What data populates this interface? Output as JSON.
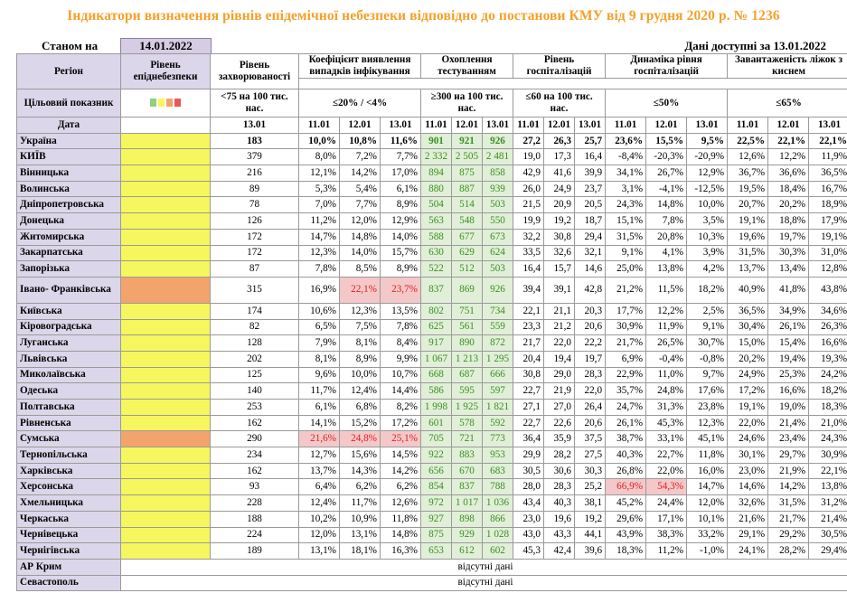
{
  "title": "Індикатори визначення рівнів епідемічної небезпеки відповідно до постанови КМУ від 9 грудня 2020 р. № 1236",
  "status_label": "Станом на",
  "status_date": "14.01.2022",
  "available_text": "Дані доступні за 13.01.2022",
  "headers": {
    "region": "Регіон",
    "target": "Цільовий показник",
    "date_label": "Дата",
    "level": "Рівень епіднебезпеки",
    "incidence": "Рівень захворюваності",
    "incidence_target": "<75 на 100 тис. нас.",
    "incidence_date": "13.01",
    "positivity": "Коефіцієнт виявлення випадків інфікування",
    "positivity_target": "≤20% / <4%",
    "testing": "Охоплення тестуванням",
    "testing_target": "≥300 на 100 тис. нас.",
    "hosp": "Рівень госпіталізацій",
    "hosp_target": "≤60 на 100 тис. нас.",
    "hosp_dyn": "Динаміка рівня госпіталізацій",
    "hosp_dyn_target": "≤50%",
    "oxygen": "Завантаженість ліжок з киснем",
    "oxygen_target": "≤65%",
    "dates": [
      "11.01",
      "12.01",
      "13.01"
    ]
  },
  "swatch_colors": [
    "#8fd17f",
    "#f6f65e",
    "#f2a46c",
    "#e85a5a"
  ],
  "rows": [
    {
      "name": "Україна",
      "level": "yellow",
      "inc": "183",
      "pos": [
        "10,0%",
        "10,8%",
        "11,6%"
      ],
      "test": [
        "901",
        "921",
        "926"
      ],
      "hosp": [
        "27,2",
        "26,3",
        "25,7"
      ],
      "dyn": [
        "23,6%",
        "15,5%",
        "9,5%"
      ],
      "oxy": [
        "22,5%",
        "22,1%",
        "22,1%"
      ],
      "bold": true
    },
    {
      "name": "КИЇВ",
      "level": "yellow",
      "inc": "379",
      "pos": [
        "8,0%",
        "7,2%",
        "7,7%"
      ],
      "test": [
        "2 332",
        "2 505",
        "2 481"
      ],
      "hosp": [
        "19,0",
        "17,3",
        "16,4"
      ],
      "dyn": [
        "-8,4%",
        "-20,3%",
        "-20,9%"
      ],
      "oxy": [
        "12,6%",
        "12,2%",
        "11,9%"
      ]
    },
    {
      "name": "Вінницька",
      "level": "yellow",
      "inc": "216",
      "pos": [
        "12,1%",
        "14,2%",
        "17,0%"
      ],
      "test": [
        "894",
        "875",
        "858"
      ],
      "hosp": [
        "42,9",
        "41,6",
        "39,9"
      ],
      "dyn": [
        "34,1%",
        "26,7%",
        "12,9%"
      ],
      "oxy": [
        "36,7%",
        "36,6%",
        "36,5%"
      ]
    },
    {
      "name": "Волинська",
      "level": "yellow",
      "inc": "89",
      "pos": [
        "5,3%",
        "5,4%",
        "6,1%"
      ],
      "test": [
        "880",
        "887",
        "939"
      ],
      "hosp": [
        "26,0",
        "24,9",
        "23,7"
      ],
      "dyn": [
        "3,1%",
        "-4,1%",
        "-12,5%"
      ],
      "oxy": [
        "19,5%",
        "18,4%",
        "16,7%"
      ]
    },
    {
      "name": "Дніпропетровська",
      "level": "yellow",
      "inc": "78",
      "pos": [
        "7,0%",
        "7,7%",
        "8,9%"
      ],
      "test": [
        "504",
        "514",
        "503"
      ],
      "hosp": [
        "21,5",
        "20,9",
        "20,5"
      ],
      "dyn": [
        "24,3%",
        "14,8%",
        "10,0%"
      ],
      "oxy": [
        "20,7%",
        "20,2%",
        "18,9%"
      ]
    },
    {
      "name": "Донецька",
      "level": "yellow",
      "inc": "126",
      "pos": [
        "11,2%",
        "12,0%",
        "12,9%"
      ],
      "test": [
        "563",
        "548",
        "550"
      ],
      "hosp": [
        "19,9",
        "19,2",
        "18,7"
      ],
      "dyn": [
        "15,1%",
        "7,8%",
        "3,5%"
      ],
      "oxy": [
        "19,1%",
        "18,8%",
        "17,9%"
      ]
    },
    {
      "name": "Житомирська",
      "level": "yellow",
      "inc": "172",
      "pos": [
        "14,7%",
        "14,8%",
        "14,0%"
      ],
      "test": [
        "588",
        "677",
        "673"
      ],
      "hosp": [
        "32,2",
        "30,8",
        "29,4"
      ],
      "dyn": [
        "31,5%",
        "20,8%",
        "10,3%"
      ],
      "oxy": [
        "19,6%",
        "19,7%",
        "19,1%"
      ]
    },
    {
      "name": "Закарпатська",
      "level": "yellow",
      "inc": "172",
      "pos": [
        "12,3%",
        "14,0%",
        "15,7%"
      ],
      "test": [
        "630",
        "629",
        "624"
      ],
      "hosp": [
        "33,5",
        "32,6",
        "32,1"
      ],
      "dyn": [
        "9,1%",
        "4,1%",
        "3,9%"
      ],
      "oxy": [
        "31,5%",
        "30,3%",
        "31,0%"
      ]
    },
    {
      "name": "Запорізька",
      "level": "yellow",
      "inc": "87",
      "pos": [
        "7,8%",
        "8,5%",
        "8,9%"
      ],
      "test": [
        "522",
        "512",
        "503"
      ],
      "hosp": [
        "16,4",
        "15,7",
        "14,6"
      ],
      "dyn": [
        "25,0%",
        "13,8%",
        "4,2%"
      ],
      "oxy": [
        "13,7%",
        "13,4%",
        "12,8%"
      ]
    },
    {
      "name": "Івано- Франківська",
      "level": "orange",
      "inc": "315",
      "pos": [
        "16,9%",
        "22,1%",
        "23,7%"
      ],
      "posRed": [
        false,
        true,
        true
      ],
      "test": [
        "837",
        "869",
        "926"
      ],
      "hosp": [
        "39,4",
        "39,1",
        "42,8"
      ],
      "dyn": [
        "21,2%",
        "11,5%",
        "18,2%"
      ],
      "oxy": [
        "40,9%",
        "41,8%",
        "43,8%"
      ],
      "tall": true
    },
    {
      "name": "Київська",
      "level": "yellow",
      "inc": "174",
      "pos": [
        "10,6%",
        "12,3%",
        "13,5%"
      ],
      "test": [
        "802",
        "751",
        "734"
      ],
      "hosp": [
        "22,1",
        "21,1",
        "20,3"
      ],
      "dyn": [
        "17,7%",
        "12,2%",
        "2,5%"
      ],
      "oxy": [
        "36,5%",
        "34,9%",
        "34,6%"
      ]
    },
    {
      "name": "Кіровоградська",
      "level": "yellow",
      "inc": "82",
      "pos": [
        "6,5%",
        "7,5%",
        "7,8%"
      ],
      "test": [
        "625",
        "561",
        "559"
      ],
      "hosp": [
        "23,3",
        "21,2",
        "20,6"
      ],
      "dyn": [
        "30,9%",
        "11,9%",
        "9,1%"
      ],
      "oxy": [
        "30,4%",
        "26,1%",
        "26,3%"
      ]
    },
    {
      "name": "Луганська",
      "level": "yellow",
      "inc": "128",
      "pos": [
        "7,9%",
        "8,1%",
        "8,4%"
      ],
      "test": [
        "917",
        "890",
        "872"
      ],
      "hosp": [
        "21,7",
        "22,0",
        "22,2"
      ],
      "dyn": [
        "21,7%",
        "26,5%",
        "30,7%"
      ],
      "oxy": [
        "15,0%",
        "15,4%",
        "16,6%"
      ]
    },
    {
      "name": "Львівська",
      "level": "yellow",
      "inc": "202",
      "pos": [
        "8,1%",
        "8,9%",
        "9,9%"
      ],
      "test": [
        "1 067",
        "1 213",
        "1 295"
      ],
      "hosp": [
        "20,4",
        "19,4",
        "19,7"
      ],
      "dyn": [
        "6,9%",
        "-0,4%",
        "-0,8%"
      ],
      "oxy": [
        "20,2%",
        "19,4%",
        "19,3%"
      ]
    },
    {
      "name": "Миколаївська",
      "level": "yellow",
      "inc": "125",
      "pos": [
        "9,6%",
        "10,0%",
        "10,7%"
      ],
      "test": [
        "668",
        "687",
        "666"
      ],
      "hosp": [
        "30,8",
        "29,0",
        "28,3"
      ],
      "dyn": [
        "22,9%",
        "11,0%",
        "9,7%"
      ],
      "oxy": [
        "24,9%",
        "25,3%",
        "24,2%"
      ]
    },
    {
      "name": "Одеська",
      "level": "yellow",
      "inc": "140",
      "pos": [
        "11,7%",
        "12,4%",
        "14,4%"
      ],
      "test": [
        "586",
        "595",
        "597"
      ],
      "hosp": [
        "22,7",
        "21,9",
        "22,0"
      ],
      "dyn": [
        "35,7%",
        "24,8%",
        "17,6%"
      ],
      "oxy": [
        "17,2%",
        "16,6%",
        "18,2%"
      ]
    },
    {
      "name": "Полтавська",
      "level": "yellow",
      "inc": "253",
      "pos": [
        "6,1%",
        "6,8%",
        "8,2%"
      ],
      "test": [
        "1 998",
        "1 925",
        "1 821"
      ],
      "hosp": [
        "27,1",
        "27,0",
        "26,4"
      ],
      "dyn": [
        "24,7%",
        "31,3%",
        "23,8%"
      ],
      "oxy": [
        "19,1%",
        "19,0%",
        "18,3%"
      ]
    },
    {
      "name": "Рівненська",
      "level": "yellow",
      "inc": "162",
      "pos": [
        "14,1%",
        "15,2%",
        "17,2%"
      ],
      "test": [
        "601",
        "578",
        "592"
      ],
      "hosp": [
        "22,7",
        "22,6",
        "20,6"
      ],
      "dyn": [
        "26,1%",
        "45,3%",
        "12,3%"
      ],
      "oxy": [
        "22,0%",
        "21,4%",
        "21,0%"
      ]
    },
    {
      "name": "Сумська",
      "level": "orange",
      "inc": "290",
      "pos": [
        "21,6%",
        "24,8%",
        "25,1%"
      ],
      "posRed": [
        true,
        true,
        true
      ],
      "test": [
        "705",
        "721",
        "773"
      ],
      "hosp": [
        "36,4",
        "35,9",
        "37,5"
      ],
      "dyn": [
        "38,7%",
        "33,1%",
        "45,1%"
      ],
      "oxy": [
        "24,6%",
        "23,4%",
        "24,3%"
      ]
    },
    {
      "name": "Тернопільська",
      "level": "yellow",
      "inc": "234",
      "pos": [
        "12,7%",
        "15,6%",
        "14,5%"
      ],
      "test": [
        "922",
        "883",
        "953"
      ],
      "hosp": [
        "29,9",
        "28,2",
        "27,5"
      ],
      "dyn": [
        "40,3%",
        "22,7%",
        "11,8%"
      ],
      "oxy": [
        "30,1%",
        "29,7%",
        "30,9%"
      ]
    },
    {
      "name": "Харківська",
      "level": "yellow",
      "inc": "162",
      "pos": [
        "13,7%",
        "14,3%",
        "14,2%"
      ],
      "test": [
        "656",
        "670",
        "683"
      ],
      "hosp": [
        "30,5",
        "30,6",
        "30,3"
      ],
      "dyn": [
        "26,8%",
        "22,0%",
        "16,0%"
      ],
      "oxy": [
        "23,0%",
        "21,9%",
        "22,1%"
      ]
    },
    {
      "name": "Херсонська",
      "level": "yellow",
      "inc": "93",
      "pos": [
        "6,4%",
        "6,2%",
        "6,2%"
      ],
      "test": [
        "854",
        "837",
        "788"
      ],
      "hosp": [
        "28,0",
        "28,3",
        "25,2"
      ],
      "dyn": [
        "66,9%",
        "54,3%",
        "14,7%"
      ],
      "dynRed": [
        true,
        true,
        false
      ],
      "oxy": [
        "14,6%",
        "14,2%",
        "13,8%"
      ]
    },
    {
      "name": "Хмельницька",
      "level": "yellow",
      "inc": "228",
      "pos": [
        "12,4%",
        "11,7%",
        "12,6%"
      ],
      "test": [
        "972",
        "1 017",
        "1 036"
      ],
      "hosp": [
        "43,4",
        "40,3",
        "38,1"
      ],
      "dyn": [
        "45,2%",
        "24,4%",
        "12,0%"
      ],
      "oxy": [
        "32,6%",
        "31,5%",
        "31,2%"
      ]
    },
    {
      "name": "Черкаська",
      "level": "yellow",
      "inc": "188",
      "pos": [
        "10,2%",
        "10,9%",
        "11,8%"
      ],
      "test": [
        "927",
        "898",
        "866"
      ],
      "hosp": [
        "23,0",
        "19,6",
        "19,2"
      ],
      "dyn": [
        "29,6%",
        "17,1%",
        "10,1%"
      ],
      "oxy": [
        "21,6%",
        "21,7%",
        "21,4%"
      ]
    },
    {
      "name": "Чернівецька",
      "level": "yellow",
      "inc": "224",
      "pos": [
        "12,0%",
        "13,1%",
        "14,8%"
      ],
      "test": [
        "875",
        "929",
        "1 028"
      ],
      "hosp": [
        "43,0",
        "43,3",
        "44,1"
      ],
      "dyn": [
        "43,9%",
        "38,3%",
        "33,2%"
      ],
      "oxy": [
        "29,1%",
        "29,2%",
        "30,5%"
      ]
    },
    {
      "name": "Чернігівська",
      "level": "yellow",
      "inc": "189",
      "pos": [
        "13,1%",
        "18,1%",
        "16,3%"
      ],
      "test": [
        "653",
        "612",
        "602"
      ],
      "hosp": [
        "45,3",
        "42,4",
        "39,6"
      ],
      "dyn": [
        "18,3%",
        "11,2%",
        "-1,0%"
      ],
      "oxy": [
        "24,1%",
        "28,2%",
        "29,4%"
      ]
    }
  ],
  "no_data_rows": [
    {
      "name": "АР Крим",
      "text": "відсутні дані"
    },
    {
      "name": "Севастополь",
      "text": "відсутні дані"
    }
  ]
}
